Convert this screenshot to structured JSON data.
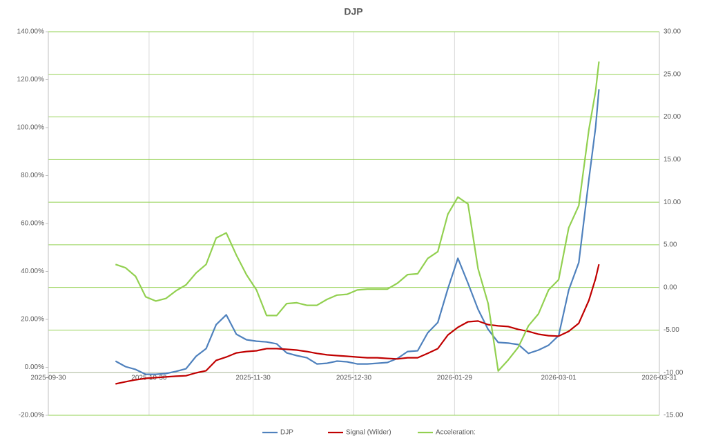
{
  "chart_data": {
    "type": "line",
    "title": "DJP",
    "x": [
      "2025-10-20",
      "2025-10-23",
      "2025-10-26",
      "2025-10-29",
      "2025-11-01",
      "2025-11-04",
      "2025-11-07",
      "2025-11-10",
      "2025-11-13",
      "2025-11-16",
      "2025-11-19",
      "2025-11-22",
      "2025-11-25",
      "2025-11-28",
      "2025-12-01",
      "2025-12-04",
      "2025-12-07",
      "2025-12-10",
      "2025-12-13",
      "2025-12-16",
      "2025-12-19",
      "2025-12-22",
      "2025-12-25",
      "2025-12-28",
      "2025-12-31",
      "2026-01-03",
      "2026-01-06",
      "2026-01-09",
      "2026-01-12",
      "2026-01-15",
      "2026-01-18",
      "2026-01-21",
      "2026-01-24",
      "2026-01-27",
      "2026-01-30",
      "2026-02-02",
      "2026-02-05",
      "2026-02-08",
      "2026-02-11",
      "2026-02-14",
      "2026-02-17",
      "2026-02-20",
      "2026-02-23",
      "2026-02-26",
      "2026-03-01",
      "2026-03-04",
      "2026-03-07",
      "2026-03-10",
      "2026-03-12",
      "2026-03-13"
    ],
    "series": [
      {
        "name": "DJP",
        "color": "#4f81bd",
        "axis": "y",
        "values": [
          2.6,
          0.3,
          -0.9,
          -2.9,
          -2.9,
          -2.6,
          -1.7,
          -0.6,
          4.6,
          7.8,
          17.8,
          21.9,
          13.8,
          11.5,
          10.9,
          10.6,
          9.8,
          6.0,
          4.9,
          4.0,
          1.4,
          1.7,
          2.6,
          2.3,
          1.4,
          1.4,
          1.7,
          2.0,
          3.7,
          6.6,
          6.9,
          14.4,
          18.7,
          32.8,
          45.5,
          35.1,
          24.2,
          15.8,
          10.4,
          10.1,
          9.5,
          5.8,
          7.2,
          9.2,
          13.2,
          32.2,
          43.7,
          78.3,
          100,
          116
        ]
      },
      {
        "name": "Signal (Wilder)",
        "color": "#c00000",
        "axis": "y",
        "values": [
          -6.9,
          -6.0,
          -5.2,
          -4.6,
          -4.3,
          -4.0,
          -3.7,
          -3.5,
          -2.3,
          -1.4,
          2.9,
          4.3,
          6.0,
          6.6,
          6.9,
          7.8,
          7.8,
          7.5,
          7.2,
          6.6,
          5.8,
          5.2,
          4.9,
          4.6,
          4.3,
          4.0,
          4.0,
          3.7,
          3.5,
          4.0,
          4.0,
          5.8,
          7.8,
          13.5,
          16.7,
          19.0,
          19.3,
          17.8,
          17.3,
          17.0,
          15.8,
          15.0,
          13.8,
          13.2,
          13.0,
          15.0,
          18.4,
          27.9,
          37,
          43
        ]
      },
      {
        "name": "Acceleration:",
        "color": "#92d050",
        "axis": "y2",
        "values": [
          2.7,
          2.3,
          1.3,
          -1.1,
          -1.6,
          -1.3,
          -0.4,
          0.3,
          1.7,
          2.7,
          5.8,
          6.4,
          3.8,
          1.5,
          -0.3,
          -3.3,
          -3.3,
          -1.9,
          -1.8,
          -2.1,
          -2.1,
          -1.4,
          -0.9,
          -0.8,
          -0.3,
          -0.2,
          -0.2,
          -0.2,
          0.5,
          1.5,
          1.6,
          3.4,
          4.2,
          8.6,
          10.6,
          9.8,
          2.2,
          -1.9,
          -9.8,
          -8.5,
          -7.0,
          -4.5,
          -3.1,
          -0.3,
          0.9,
          7.0,
          9.6,
          18.5,
          23,
          26.5
        ]
      }
    ],
    "xlim": [
      "2025-09-30",
      "2026-03-31"
    ],
    "xticks": [
      "2025-09-30",
      "2025-10-30",
      "2025-11-30",
      "2025-12-30",
      "2026-01-29",
      "2026-03-01",
      "2026-03-31"
    ],
    "ylim": [
      -20,
      140
    ],
    "yticks": [
      {
        "value": -20,
        "label": "-20.00%"
      },
      {
        "value": 0,
        "label": "0.00%"
      },
      {
        "value": 20,
        "label": "20.00%"
      },
      {
        "value": 40,
        "label": "40.00%"
      },
      {
        "value": 60,
        "label": "60.00%"
      },
      {
        "value": 80,
        "label": "80.00%"
      },
      {
        "value": 100,
        "label": "100.00%"
      },
      {
        "value": 120,
        "label": "120.00%"
      },
      {
        "value": 140,
        "label": "140.00%"
      }
    ],
    "y2lim": [
      -15,
      30
    ],
    "y2ticks": [
      {
        "value": -15,
        "label": "-15.00"
      },
      {
        "value": -10,
        "label": "-10.00"
      },
      {
        "value": -5,
        "label": "-5.00"
      },
      {
        "value": 0,
        "label": "0.00"
      },
      {
        "value": 5,
        "label": "5.00"
      },
      {
        "value": 10,
        "label": "10.00"
      },
      {
        "value": 15,
        "label": "15.00"
      },
      {
        "value": 20,
        "label": "20.00"
      },
      {
        "value": 25,
        "label": "25.00"
      },
      {
        "value": 30,
        "label": "30.00"
      }
    ],
    "grid": "y2",
    "legend": "bottom"
  }
}
